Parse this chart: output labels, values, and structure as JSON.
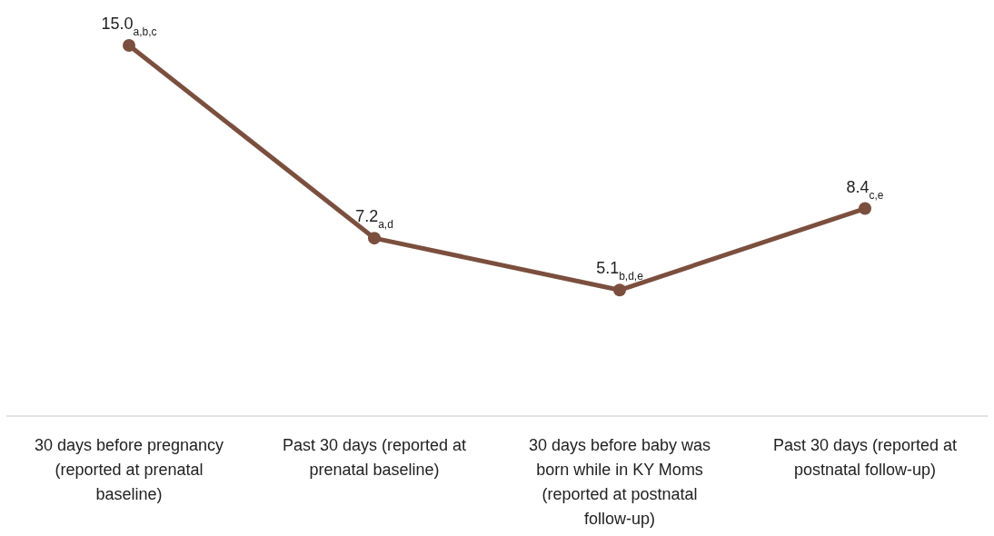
{
  "chart_data": {
    "type": "line",
    "categories": [
      "30 days before pregnancy (reported at prenatal baseline)",
      "Past 30 days (reported at prenatal baseline)",
      "30 days before baby was born while in KY Moms (reported at postnatal follow-up)",
      "Past 30 days (reported at postnatal follow-up)"
    ],
    "series": [
      {
        "color": "#7b4f3e",
        "values": [
          15.0,
          7.2,
          5.1,
          8.4
        ],
        "value_labels": [
          "15.0$_{a,b,c}$",
          "7.2$_{a,d}$",
          "5.1$_{b,d,e}$",
          "8.4$_{c,e}$"
        ]
      }
    ],
    "marker": "circle",
    "line_style": "solid",
    "tick_labels": "x"
  }
}
